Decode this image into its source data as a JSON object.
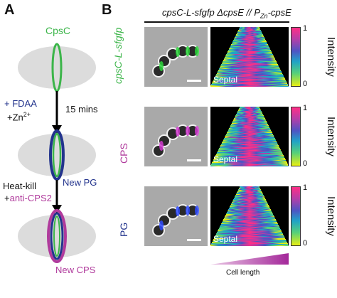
{
  "panel_a": {
    "letter": "A",
    "cpsc_label": "CpsC",
    "fdaa": "+ FDAA",
    "zn_base": "+Zn",
    "zn_sup": "2+",
    "time": "15 mins",
    "new_pg": "New PG",
    "heat_kill": "Heat-kill",
    "anti_prefix": "+",
    "anti_cps2": "anti-CPS2",
    "new_cps": "New CPS"
  },
  "panel_b": {
    "letter": "B",
    "header_main": "cpsC-L-sfgfp ΔcpsE // P",
    "header_sub": "Zn",
    "header_end": "-cpsE",
    "rows": [
      {
        "label": "cpsC-L-sfgfp",
        "septal": "Septal"
      },
      {
        "label": "CPS",
        "septal": "Septal"
      },
      {
        "label": "PG",
        "septal": "Septal"
      }
    ],
    "colorbar": {
      "max": "1",
      "min": "0",
      "title": "Intensity"
    },
    "cell_length": "Cell length"
  },
  "colors": {
    "green": "#3cb54a",
    "magenta": "#b03a9c",
    "blue": "#23348d",
    "grey": "#dcdcdc"
  }
}
